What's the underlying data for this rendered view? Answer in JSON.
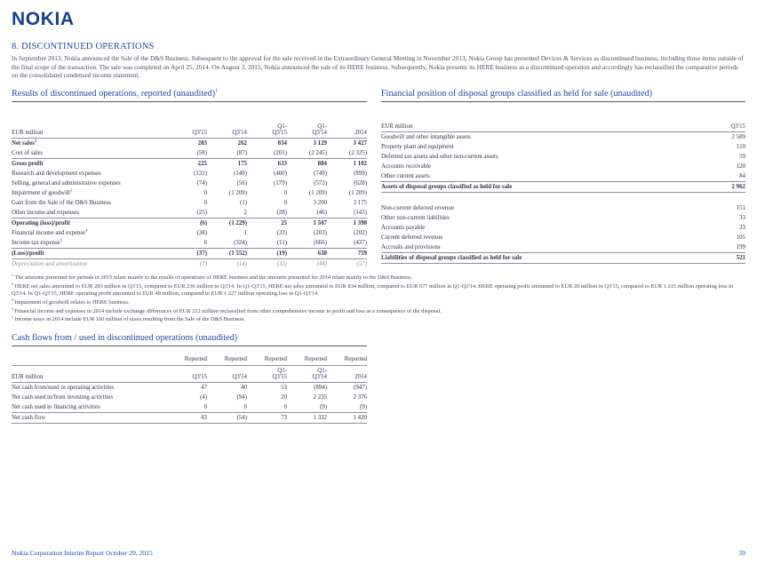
{
  "header": {
    "logo": "NOKIA"
  },
  "section": {
    "title": "8. DISCONTINUED OPERATIONS",
    "intro": "In September 2013, Nokia announced the Sale of the D&S Business. Subsequent to the approval for the sale received in the Extraordinary General Meeting in November 2013, Nokia Group has presented Devices & Services as discontinued business, including those items outside of the final scope of the transaction. The sale was completed on April 25, 2014. On August 3, 2015, Nokia announced the sale of its HERE business. Subsequently, Nokia presents its HERE business as a discontinued operation and accordingly has reclassified the comparative periods on the consolidated condensed income statement."
  },
  "results": {
    "title": "Results of discontinued operations, reported (unaudited)",
    "title_sup": "1",
    "unit_label": "EUR million",
    "columns": [
      "Q3'15",
      "Q3'14",
      "Q1-\nQ3'15",
      "Q1-\nQ3'14",
      "2014"
    ],
    "rows": [
      {
        "label": "Net sales",
        "sup": "2",
        "style": "bold",
        "values": [
          "283",
          "262",
          "834",
          "3 129",
          "3 427"
        ]
      },
      {
        "label": "Cost of sales",
        "values": [
          "(58)",
          "(87)",
          "(201)",
          "(2 245)",
          "(2 325)"
        ]
      },
      {
        "label": "Gross profit",
        "style": "bold",
        "borders": [
          "top"
        ],
        "values": [
          "225",
          "175",
          "633",
          "884",
          "1 102"
        ]
      },
      {
        "label": "Research and development expenses",
        "values": [
          "(131)",
          "(140)",
          "(400)",
          "(749)",
          "(899)"
        ]
      },
      {
        "label": "Selling, general and administrative expenses",
        "values": [
          "(74)",
          "(56)",
          "(179)",
          "(572)",
          "(628)"
        ]
      },
      {
        "label": "Impairment of goodwill",
        "sup": "3",
        "values": [
          "0",
          "(1 209)",
          "0",
          "(1 209)",
          "(1 209)"
        ]
      },
      {
        "label": "Gain from the Sale of the D&S Business",
        "values": [
          "0",
          "(1)",
          "0",
          "3 200",
          "3 175"
        ]
      },
      {
        "label": "Other income and expenses",
        "values": [
          "(25)",
          "2",
          "(28)",
          "(46)",
          "(143)"
        ]
      },
      {
        "label": "Operating (loss)/profit",
        "style": "bold",
        "borders": [
          "top"
        ],
        "values": [
          "(6)",
          "(1 229)",
          "25",
          "1 507",
          "1 398"
        ]
      },
      {
        "label": "Financial income and expense",
        "sup": "4",
        "values": [
          "(38)",
          "1",
          "(33)",
          "(203)",
          "(202)"
        ]
      },
      {
        "label": "Income tax expense",
        "sup": "5",
        "values": [
          "6",
          "(324)",
          "(11)",
          "(666)",
          "(437)"
        ]
      },
      {
        "label": "(Loss)/profit",
        "style": "bold",
        "borders": [
          "top",
          "bottom"
        ],
        "values": [
          "(37)",
          "(1 552)",
          "(19)",
          "638",
          "759"
        ]
      },
      {
        "label": "Depreciation and amortization",
        "style": "italic",
        "values": [
          "(7)",
          "(14)",
          "(33)",
          "(44)",
          "(57)"
        ]
      }
    ]
  },
  "position": {
    "title": "Financial position of disposal groups classified as held for sale (unaudited)",
    "unit_label": "EUR million",
    "columns": [
      "Q3'15"
    ],
    "rows": [
      {
        "label": "Goodwill and other intangible assets",
        "values": [
          "2 589"
        ]
      },
      {
        "label": "Property plant and equipment",
        "values": [
          "110"
        ]
      },
      {
        "label": "Deferred tax assets and other non-current assets",
        "values": [
          "59"
        ]
      },
      {
        "label": "Accounts receivable",
        "values": [
          "120"
        ]
      },
      {
        "label": "Other current assets",
        "values": [
          "84"
        ]
      },
      {
        "label": "Assets of disposal groups classified as held for sale",
        "style": "bold",
        "borders": [
          "top",
          "bottom"
        ],
        "values": [
          "2 962"
        ]
      },
      {
        "type": "spacer"
      },
      {
        "label": "Non-current deferred revenue",
        "values": [
          "151"
        ]
      },
      {
        "label": "Other non-current liabilities",
        "values": [
          "33"
        ]
      },
      {
        "label": "Accounts payable",
        "values": [
          "33"
        ]
      },
      {
        "label": "Current deferred revenue",
        "values": [
          "105"
        ]
      },
      {
        "label": "Accruals and provisions",
        "values": [
          "199"
        ]
      },
      {
        "label": "Liabilities of disposal groups classified as held for sale",
        "style": "bold",
        "borders": [
          "top",
          "bottom"
        ],
        "values": [
          "521"
        ]
      }
    ]
  },
  "footnotes": [
    {
      "sup": "1",
      "text": "The amounts presented for periods in 2015 relate mainly to the results of operations of HERE business and the amounts presented for 2014 relate mainly to the D&S Business."
    },
    {
      "sup": "2",
      "text": "HERE net sales amounted to EUR 283 million in Q3'15, compared to EUR 236 million in Q3'14. In Q1-Q3'15, HERE net sales amounted to EUR 834 million, compared to EUR 677 million in Q1-Q3'14. HERE operating profit amounted to EUR 20 million in Q3'15, compared to EUR 1 215 million operating loss in Q3'14. In Q1-Q3'15, HERE operating profit amounted to EUR 48 million, compared to EUR 1 227 million operating loss in Q1-Q3'14."
    },
    {
      "sup": "3",
      "text": "Impairment of goodwill relates to HERE business."
    },
    {
      "sup": "4",
      "text": "Financial income and expenses in 2014 include exchange differences of EUR 212 million reclassified from other comprehensive income to profit and loss as a consequence of the disposal."
    },
    {
      "sup": "5",
      "text": "Income taxes in 2014 include EUR 160 million of taxes resulting from the Sale of the D&S Business."
    }
  ],
  "cash": {
    "title": "Cash flows from / used in discontinued operations (unaudited)",
    "unit_label": "EUR million",
    "reported_label": "Reported",
    "columns": [
      "Q3'15",
      "Q3'14",
      "Q1-\nQ3'15",
      "Q1-\nQ3'14",
      "2014"
    ],
    "rows": [
      {
        "label": "Net cash from/used in operating activities",
        "values": [
          "47",
          "40",
          "53",
          "(894)",
          "(947)"
        ]
      },
      {
        "label": "Net cash used in/from investing activities",
        "values": [
          "(4)",
          "(94)",
          "20",
          "2 235",
          "2 376"
        ]
      },
      {
        "label": "Net cash used in financing activities",
        "values": [
          "0",
          "0",
          "0",
          "(9)",
          "(9)"
        ]
      },
      {
        "label": "Net cash flow",
        "borders": [
          "top",
          "bottom"
        ],
        "values": [
          "43",
          "(54)",
          "73",
          "1 332",
          "1 420"
        ]
      }
    ]
  },
  "footer": {
    "left": "Nokia Corporation Interim Report October 29, 2015",
    "page_number": "39"
  },
  "colors": {
    "brand_blue": "#15418f",
    "heading_blue": "#1a4aa0"
  }
}
